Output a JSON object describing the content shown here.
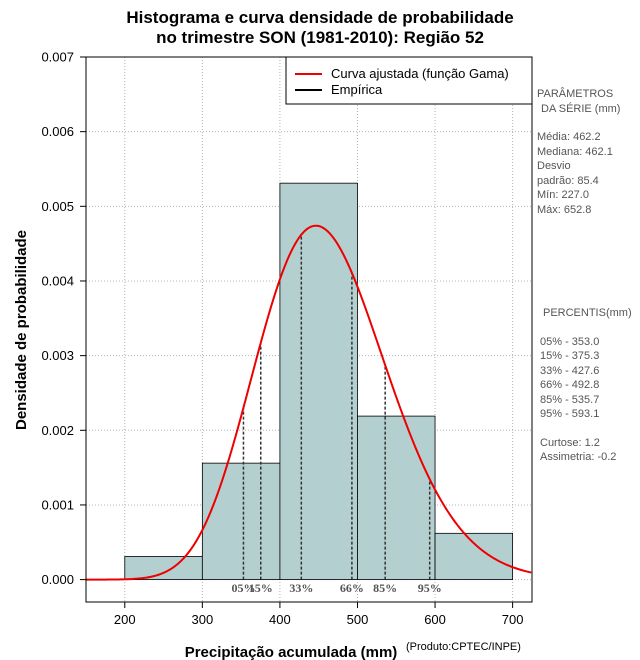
{
  "chart_data": {
    "type": "histogram",
    "title_lines": [
      "Histograma e curva densidade de probabilidade",
      "no trimestre SON (1981-2010): Região 52"
    ],
    "xlabel": "Precipitação acumulada (mm)",
    "ylabel": "Densidade de probabilidade",
    "xlim": [
      150,
      725
    ],
    "ylim": [
      -0.0003,
      0.007
    ],
    "xticks": [
      200,
      300,
      400,
      500,
      600,
      700
    ],
    "xtick_labels": [
      "200",
      "300",
      "400",
      "500",
      "600",
      "700"
    ],
    "yticks": [
      0,
      0.001,
      0.002,
      0.003,
      0.004,
      0.005,
      0.006,
      0.007
    ],
    "ytick_labels": [
      "0.000",
      "0.001",
      "0.002",
      "0.003",
      "0.004",
      "0.005",
      "0.006",
      "0.007"
    ],
    "grid": true,
    "legend_position": "top-right",
    "legend": [
      {
        "label": "Curva ajustada (função Gama)",
        "color": "#ee0000"
      },
      {
        "label": "Empírica",
        "color": "#000000"
      }
    ],
    "bins": [
      {
        "x0": 200,
        "x1": 300,
        "density": 0.00031
      },
      {
        "x0": 300,
        "x1": 400,
        "density": 0.00156
      },
      {
        "x0": 400,
        "x1": 500,
        "density": 0.00531
      },
      {
        "x0": 500,
        "x1": 600,
        "density": 0.00219
      },
      {
        "x0": 600,
        "x1": 700,
        "density": 0.00062
      }
    ],
    "gamma_fit": {
      "shape": 29.3,
      "rate": 0.0634
    },
    "percentile_lines": [
      {
        "label": "05%",
        "x": 353.0
      },
      {
        "label": "15%",
        "x": 375.3
      },
      {
        "label": "33%",
        "x": 427.6
      },
      {
        "label": "66%",
        "x": 492.8
      },
      {
        "label": "85%",
        "x": 535.7
      },
      {
        "label": "95%",
        "x": 593.1
      }
    ]
  },
  "stats_panel": {
    "header_line1": "PARÂMETROS",
    "header_line2": "DA SÉRIE (mm)",
    "media": "Média:  462.2",
    "mediana": "Mediana:  462.1",
    "desvio_line1": "Desvio",
    "desvio_line2": "padrão:  85.4",
    "min": "Mín:  227.0",
    "max": "Máx:  652.8"
  },
  "percentis_panel": {
    "header": "PERCENTIS(mm)",
    "rows": [
      "05% -   353.0",
      "15% -   375.3",
      "33% -   427.6",
      "66% -   492.8",
      "85% -   535.7",
      "95% -   593.1"
    ],
    "curtose": "Curtose:  1.2",
    "assimetria": "Assimetria:  -0.2"
  },
  "credit": "(Produto:CPTEC/INPE)",
  "colors": {
    "bar_fill": "#b4cfcf",
    "curve": "#ee0000",
    "grid": "#b3b3b3"
  }
}
